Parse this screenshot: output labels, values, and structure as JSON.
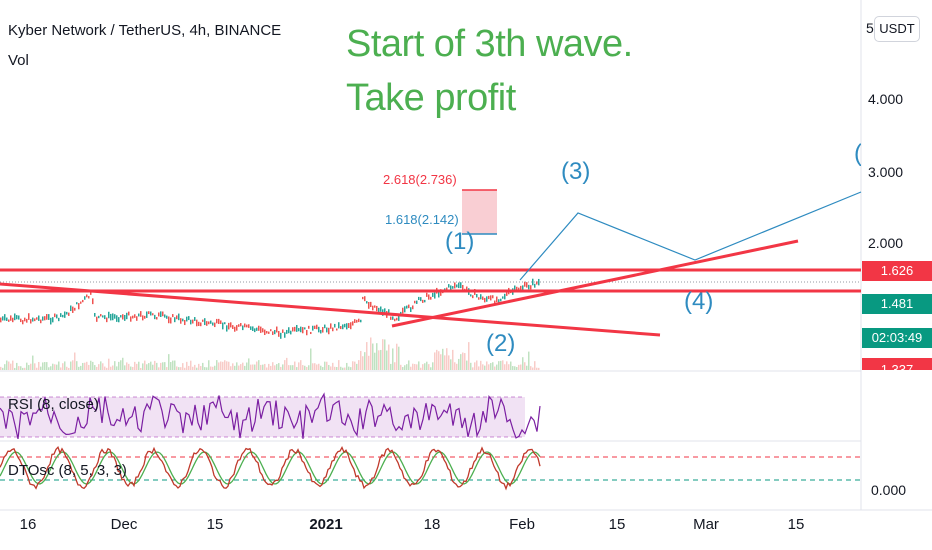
{
  "header": {
    "symbol": "Kyber Network / TetherUS, 4h, BINANCE",
    "volume_label": "Vol"
  },
  "annotation": {
    "line1": "Start of 3th wave.",
    "line2": "Take profit",
    "color": "#4caf50"
  },
  "price_axis": {
    "unit_button": "USDT",
    "ticks": [
      "5",
      "4.000",
      "3.000",
      "2.000"
    ],
    "badges": [
      {
        "text": "1.626",
        "color": "#f23645"
      },
      {
        "text": "1.481",
        "color": "#089981"
      },
      {
        "text": "02:03:49",
        "color": "#089981"
      },
      {
        "text": "1.337",
        "color": "#f23645"
      }
    ],
    "oscillator_tick": "0.000"
  },
  "time_axis": {
    "ticks": [
      {
        "label": "16",
        "bold": false
      },
      {
        "label": "Dec",
        "bold": false
      },
      {
        "label": "15",
        "bold": false
      },
      {
        "label": "2021",
        "bold": true
      },
      {
        "label": "18",
        "bold": false
      },
      {
        "label": "Feb",
        "bold": false
      },
      {
        "label": "15",
        "bold": false
      },
      {
        "label": "Mar",
        "bold": false
      },
      {
        "label": "15",
        "bold": false
      }
    ]
  },
  "fibonacci": [
    {
      "label": "2.618(2.736)",
      "color": "#f23645"
    },
    {
      "label": "1.618(2.142)",
      "color": "#2e8bc0"
    }
  ],
  "waves": [
    "(1)",
    "(2)",
    "(3)",
    "(4)",
    "("
  ],
  "indicators": {
    "rsi": "RSI (8, close)",
    "dtosc": "DTOsc (8, 5, 3, 3)"
  },
  "chart_data": {
    "type": "line",
    "title": "Kyber Network / TetherUS, 4h, BINANCE",
    "x_dates": [
      "16",
      "Dec",
      "15",
      "2021",
      "18",
      "Feb",
      "15",
      "Mar",
      "15"
    ],
    "price_levels": {
      "resistance": 1.626,
      "last": 1.481,
      "support": 1.337
    },
    "fib_targets": [
      {
        "level": 2.618,
        "price": 2.736
      },
      {
        "level": 1.618,
        "price": 2.142
      }
    ],
    "y_ticks": [
      2.0,
      3.0,
      4.0
    ],
    "projected_wave_path": {
      "labels": [
        "(2)",
        "(3)",
        "(4)",
        "("
      ],
      "prices": [
        1.5,
        2.4,
        1.7,
        2.7
      ]
    },
    "grid": false
  }
}
